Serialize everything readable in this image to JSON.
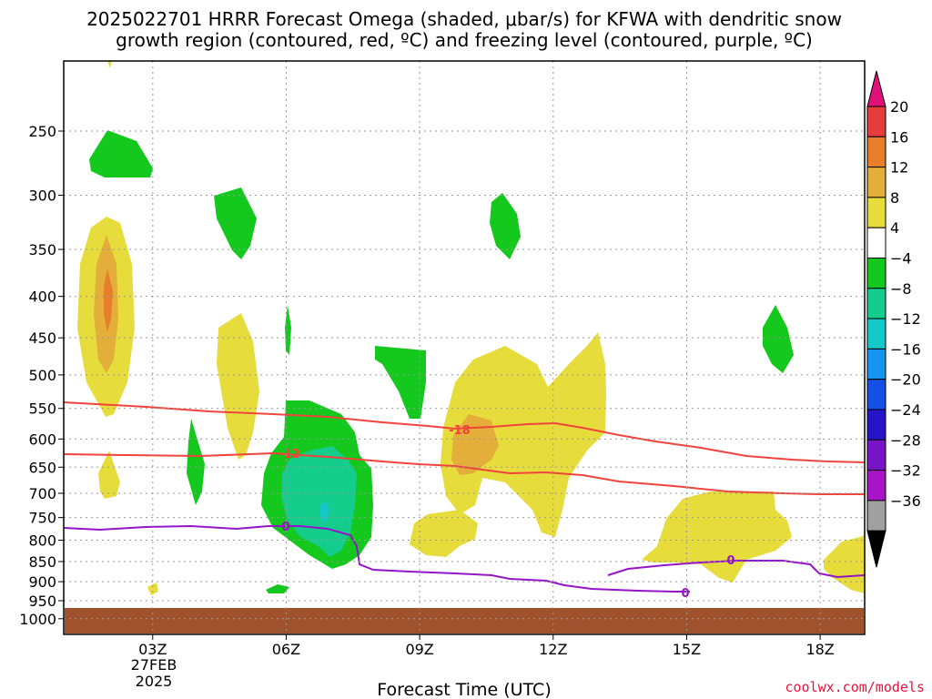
{
  "title_line1": "2025022701 HRRR Forecast Omega (shaded, μbar/s) for KFWA with dendritic snow",
  "title_line2": "growth region (contoured, red, ºC) and freezing level (contoured, purple, ºC)",
  "credit": "coolwx.com/models",
  "chart_data": {
    "type": "heatmap",
    "xlabel": "Forecast Time (UTC)",
    "x_ticks": [
      "03Z",
      "06Z",
      "09Z",
      "12Z",
      "15Z",
      "18Z"
    ],
    "x_tick_hours": [
      3,
      6,
      9,
      12,
      15,
      18
    ],
    "x_date_label": [
      "27FEB",
      "2025"
    ],
    "xlim_hours": [
      1,
      19
    ],
    "y_ticks": [
      250,
      300,
      350,
      400,
      450,
      500,
      550,
      600,
      650,
      700,
      750,
      800,
      850,
      900,
      950,
      1000
    ],
    "ylim_hPa": [
      200,
      1000
    ],
    "y_scale": "log",
    "colorbar": {
      "labels": [
        "20",
        "16",
        "12",
        "8",
        "4",
        "−4",
        "−8",
        "−12",
        "−16",
        "−20",
        "−24",
        "−28",
        "−32",
        "−36"
      ],
      "colors": [
        "#e0107a",
        "#e63c3c",
        "#e87d2a",
        "#e4ae3a",
        "#e6dc3c",
        "#ffffff",
        "#14c81e",
        "#14cc8c",
        "#14c8c8",
        "#1496f0",
        "#1450e6",
        "#2814c8",
        "#7814c8",
        "#aa14c8",
        "#a0a0a0",
        "#000000"
      ]
    },
    "contours": [
      {
        "level": "-18",
        "color": "#f0443c",
        "label_at_hour": 10.0
      },
      {
        "level": "-12",
        "color": "#f0443c",
        "label_at_hour": 6.1
      },
      {
        "level": "0",
        "color": "#9614c8",
        "label_at_hour": [
          6.0,
          15.0,
          16.0
        ]
      }
    ],
    "omega_regions": [
      {
        "sign": "positive",
        "level": 4,
        "desc": "upper column around 02Z",
        "hours": [
          1.3,
          2.5
        ],
        "pressure_hPa": [
          330,
          560
        ]
      },
      {
        "sign": "positive",
        "level": 8,
        "desc": "core around 02Z",
        "hours": [
          1.6,
          2.2
        ],
        "pressure_hPa": [
          340,
          500
        ]
      },
      {
        "sign": "positive",
        "level": 12,
        "desc": "max around 02Z",
        "hours": [
          1.9,
          2.0
        ],
        "pressure_hPa": [
          370,
          440
        ]
      },
      {
        "sign": "negative",
        "level": -4,
        "desc": "ascent region around 06-07Z",
        "hours": [
          5.5,
          8.0
        ],
        "pressure_hPa": [
          550,
          870
        ]
      },
      {
        "sign": "negative",
        "level": -8,
        "desc": "core around 07Z",
        "hours": [
          6.0,
          7.5
        ],
        "pressure_hPa": [
          650,
          850
        ]
      },
      {
        "sign": "positive",
        "level": 4,
        "desc": "broad region 09-13Z",
        "hours": [
          8.5,
          13.2
        ],
        "pressure_hPa": [
          450,
          800
        ]
      },
      {
        "sign": "positive",
        "level": 8,
        "desc": "core near 10Z",
        "hours": [
          9.8,
          10.6
        ],
        "pressure_hPa": [
          590,
          680
        ]
      },
      {
        "sign": "positive",
        "level": 4,
        "desc": "low-level region 15-18Z",
        "hours": [
          15.2,
          18.0
        ],
        "pressure_hPa": [
          690,
          890
        ]
      }
    ],
    "ground": {
      "pressure_hPa": 975,
      "color": "#a0522d"
    }
  }
}
